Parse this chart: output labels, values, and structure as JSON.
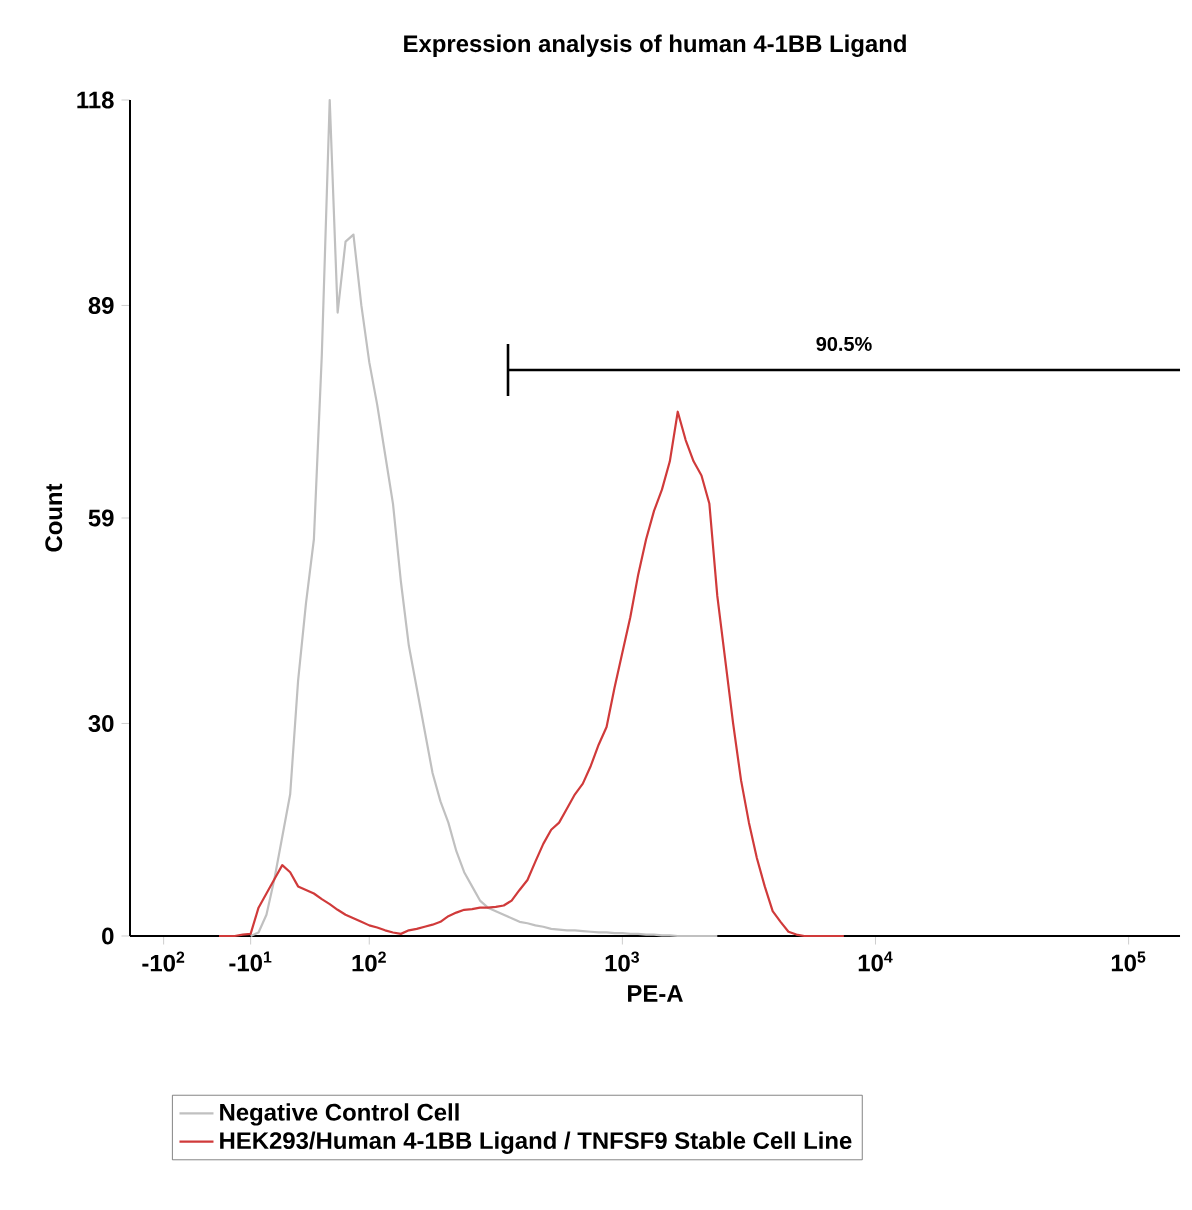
{
  "chart_data": {
    "type": "line",
    "title": "Expression analysis of human  4-1BB Ligand",
    "xlabel": "PE-A",
    "ylabel": "Count",
    "categories": [
      null,
      null,
      null,
      null,
      "-10$^{2}$",
      null,
      null,
      null,
      null,
      null,
      null,
      null,
      null,
      null,
      null,
      "-10$^{1}$",
      null,
      null,
      null,
      null,
      null,
      null,
      null,
      null,
      null,
      null,
      null,
      null,
      null,
      null,
      "10$^{2}$",
      null,
      null,
      null,
      null,
      null,
      null,
      null,
      null,
      null,
      null,
      null,
      null,
      null,
      null,
      null,
      null,
      null,
      null,
      null,
      null,
      null,
      null,
      null,
      null,
      null,
      null,
      null,
      null,
      null,
      null,
      null,
      "10$^{3}$",
      null,
      null,
      null,
      null,
      null,
      null,
      null,
      null,
      null,
      null,
      null,
      null,
      null,
      null,
      null,
      null,
      null,
      null,
      null,
      null,
      null,
      null,
      null,
      null,
      null,
      null,
      null,
      null,
      null,
      null,
      null,
      "10$^{4}$",
      null,
      null,
      null,
      null,
      null,
      null,
      null,
      null,
      null,
      null,
      null,
      null,
      null,
      null,
      null,
      null,
      null,
      null,
      null,
      null,
      null,
      null,
      null,
      null,
      null,
      null,
      null,
      null,
      null,
      null,
      null,
      "10$^{5}$",
      null,
      null,
      null,
      null,
      null,
      null
    ],
    "ylim": [
      0,
      118
    ],
    "yticks": [
      0,
      30,
      59,
      89,
      118
    ],
    "legend": "bottom",
    "annotations": [
      "90.5%"
    ],
    "series": [
      {
        "name": "Negative Control Cell",
        "color": "#c0c0c0",
        "values": [
          null,
          null,
          null,
          null,
          null,
          null,
          null,
          null,
          null,
          null,
          null,
          null,
          null,
          null,
          null,
          0,
          0.5,
          3,
          8,
          14,
          20,
          36,
          47,
          56,
          82,
          118,
          88,
          98,
          99,
          89,
          81,
          75,
          68,
          61,
          50,
          41,
          35,
          29,
          23,
          19,
          16,
          12,
          9,
          7,
          5,
          4,
          3.5,
          3,
          2.5,
          2,
          1.8,
          1.5,
          1.3,
          1,
          0.9,
          0.8,
          0.8,
          0.7,
          0.6,
          0.5,
          0.5,
          0.4,
          0.4,
          0.3,
          0.3,
          0.2,
          0.2,
          0.1,
          0.1,
          0,
          0,
          0,
          0,
          0,
          0,
          null,
          null,
          null,
          null,
          null,
          null,
          null,
          null,
          null,
          null,
          null,
          null,
          null,
          null,
          null,
          null,
          null,
          null,
          null,
          null,
          null,
          null,
          null,
          null,
          null,
          null,
          null,
          null,
          null,
          null,
          null,
          null,
          null,
          null,
          null,
          null,
          null,
          null,
          null,
          null,
          null,
          null,
          null,
          null,
          null,
          null,
          null,
          null,
          null,
          null,
          null,
          null,
          null,
          null,
          null,
          null,
          null,
          null
        ]
      },
      {
        "name": "HEK293/Human 4-1BB Ligand / TNFSF9 Stable Cell Line",
        "color": "#d03a3a",
        "values": [
          null,
          null,
          null,
          null,
          null,
          null,
          null,
          null,
          null,
          null,
          null,
          0,
          0,
          0,
          0.2,
          0.3,
          4,
          6,
          8,
          10,
          9,
          7,
          6.5,
          6,
          5.2,
          4.5,
          3.7,
          3,
          2.5,
          2,
          1.5,
          1.2,
          0.8,
          0.5,
          0.3,
          0.8,
          1,
          1.3,
          1.6,
          2,
          2.8,
          3.3,
          3.7,
          3.8,
          4,
          4,
          4.1,
          4.3,
          5,
          6.5,
          7.9,
          10.5,
          13,
          15,
          16,
          18,
          20,
          21.5,
          24,
          27,
          29.5,
          35,
          40,
          45,
          51,
          56,
          60,
          63,
          67,
          74,
          70,
          67,
          65,
          61,
          48,
          39,
          30,
          22,
          16,
          11,
          7,
          3.5,
          2,
          0.6,
          0.2,
          0,
          0,
          0,
          0,
          0,
          0,
          null,
          null,
          null,
          null,
          null,
          null,
          null,
          null,
          null,
          null,
          null,
          null,
          null,
          null,
          null,
          null,
          null,
          null,
          null,
          null,
          null,
          null,
          null,
          null,
          null,
          null,
          null,
          null,
          null,
          null,
          null,
          null,
          null,
          null,
          null,
          null,
          null,
          null,
          null,
          null,
          null,
          null
        ]
      }
    ]
  }
}
